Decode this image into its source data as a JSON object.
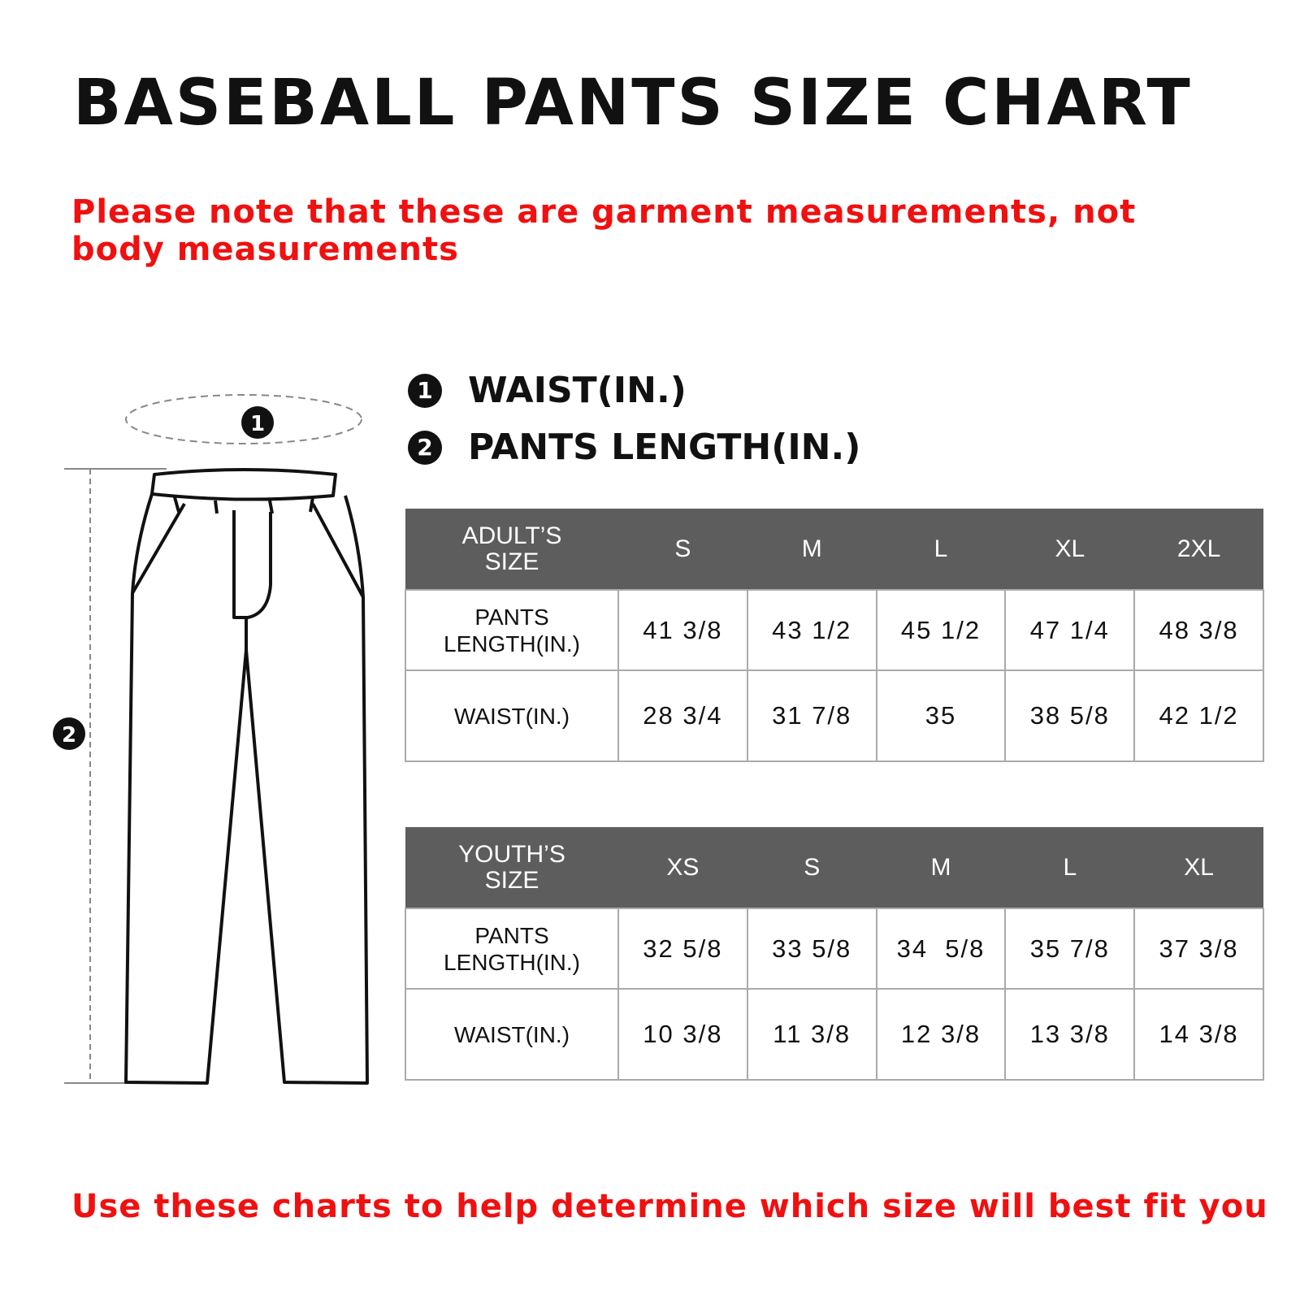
{
  "title": "BASEBALL PANTS SIZE CHART",
  "note": "Please note that these are garment measurements, not body measurements",
  "legend": [
    {
      "number": "1",
      "label": "WAIST(IN.)"
    },
    {
      "number": "2",
      "label": "PANTS LENGTH(IN.)"
    }
  ],
  "diagram": {
    "marker_waist": "1",
    "marker_length": "2"
  },
  "adult_table": {
    "header": [
      "ADULT’S SIZE",
      "S",
      "M",
      "L",
      "XL",
      "2XL"
    ],
    "rows": [
      {
        "label": "PANTS LENGTH(IN.)",
        "values": [
          "41 3/8",
          "43 1/2",
          "45 1/2",
          "47 1/4",
          "48 3/8"
        ]
      },
      {
        "label": "WAIST(IN.)",
        "values": [
          "28 3/4",
          "31 7/8",
          "35",
          "38 5/8",
          "42 1/2"
        ]
      }
    ]
  },
  "youth_table": {
    "header": [
      "YOUTH’S SIZE",
      "XS",
      "S",
      "M",
      "L",
      "XL"
    ],
    "rows": [
      {
        "label": "PANTS LENGTH(IN.)",
        "values": [
          "32 5/8",
          "33 5/8",
          "34  5/8",
          "35 7/8",
          "37 3/8"
        ]
      },
      {
        "label": "WAIST(IN.)",
        "values": [
          "10 3/8",
          "11 3/8",
          "12 3/8",
          "13 3/8",
          "14 3/8"
        ]
      }
    ]
  },
  "footer": "Use these charts to help determine which size will best fit you",
  "colors": {
    "accent_red": "#f01010",
    "table_header": "#5d5d5d"
  }
}
